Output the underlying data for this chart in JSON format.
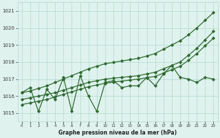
{
  "x": [
    0,
    1,
    2,
    3,
    4,
    5,
    6,
    7,
    8,
    9,
    10,
    11,
    12,
    13,
    14,
    15,
    16,
    17,
    18,
    19,
    20,
    21,
    22,
    23
  ],
  "y_zigzag": [
    1016.2,
    1016.5,
    1015.1,
    1016.4,
    1015.8,
    1017.1,
    1015.1,
    1017.2,
    1016.0,
    1015.1,
    1016.8,
    1016.9,
    1016.5,
    1016.6,
    1016.6,
    1017.1,
    1016.6,
    1017.3,
    1017.8,
    1017.1,
    1017.0,
    1016.8,
    1017.1,
    1017.0
  ],
  "y_trend1": [
    1015.8,
    1015.9,
    1016.0,
    1016.1,
    1016.2,
    1016.35,
    1016.5,
    1016.65,
    1016.8,
    1016.9,
    1017.0,
    1017.05,
    1017.1,
    1017.15,
    1017.2,
    1017.3,
    1017.4,
    1017.6,
    1017.8,
    1018.0,
    1018.4,
    1018.8,
    1019.3,
    1019.8
  ],
  "y_trend2": [
    1015.5,
    1015.6,
    1015.7,
    1015.8,
    1015.95,
    1016.1,
    1016.25,
    1016.4,
    1016.55,
    1016.65,
    1016.75,
    1016.82,
    1016.88,
    1016.94,
    1017.0,
    1017.08,
    1017.15,
    1017.35,
    1017.55,
    1017.75,
    1018.1,
    1018.5,
    1018.95,
    1019.4
  ],
  "y_main_upper": [
    1016.2,
    1016.3,
    1016.45,
    1016.6,
    1016.8,
    1017.0,
    1017.2,
    1017.4,
    1017.6,
    1017.75,
    1017.9,
    1017.98,
    1018.06,
    1018.14,
    1018.22,
    1018.35,
    1018.5,
    1018.75,
    1019.0,
    1019.25,
    1019.6,
    1020.0,
    1020.45,
    1020.9
  ],
  "line_color": "#2d6a2d",
  "bg_color": "#dff2ee",
  "grid_color": "#b0d8d0",
  "ylabel_ticks": [
    1015,
    1016,
    1017,
    1018,
    1019,
    1020,
    1021
  ],
  "xlabel": "Graphe pression niveau de la mer (hPa)",
  "ylim": [
    1014.5,
    1021.5
  ],
  "xlim": [
    -0.5,
    23.5
  ],
  "figsize": [
    3.2,
    2.0
  ],
  "dpi": 100
}
